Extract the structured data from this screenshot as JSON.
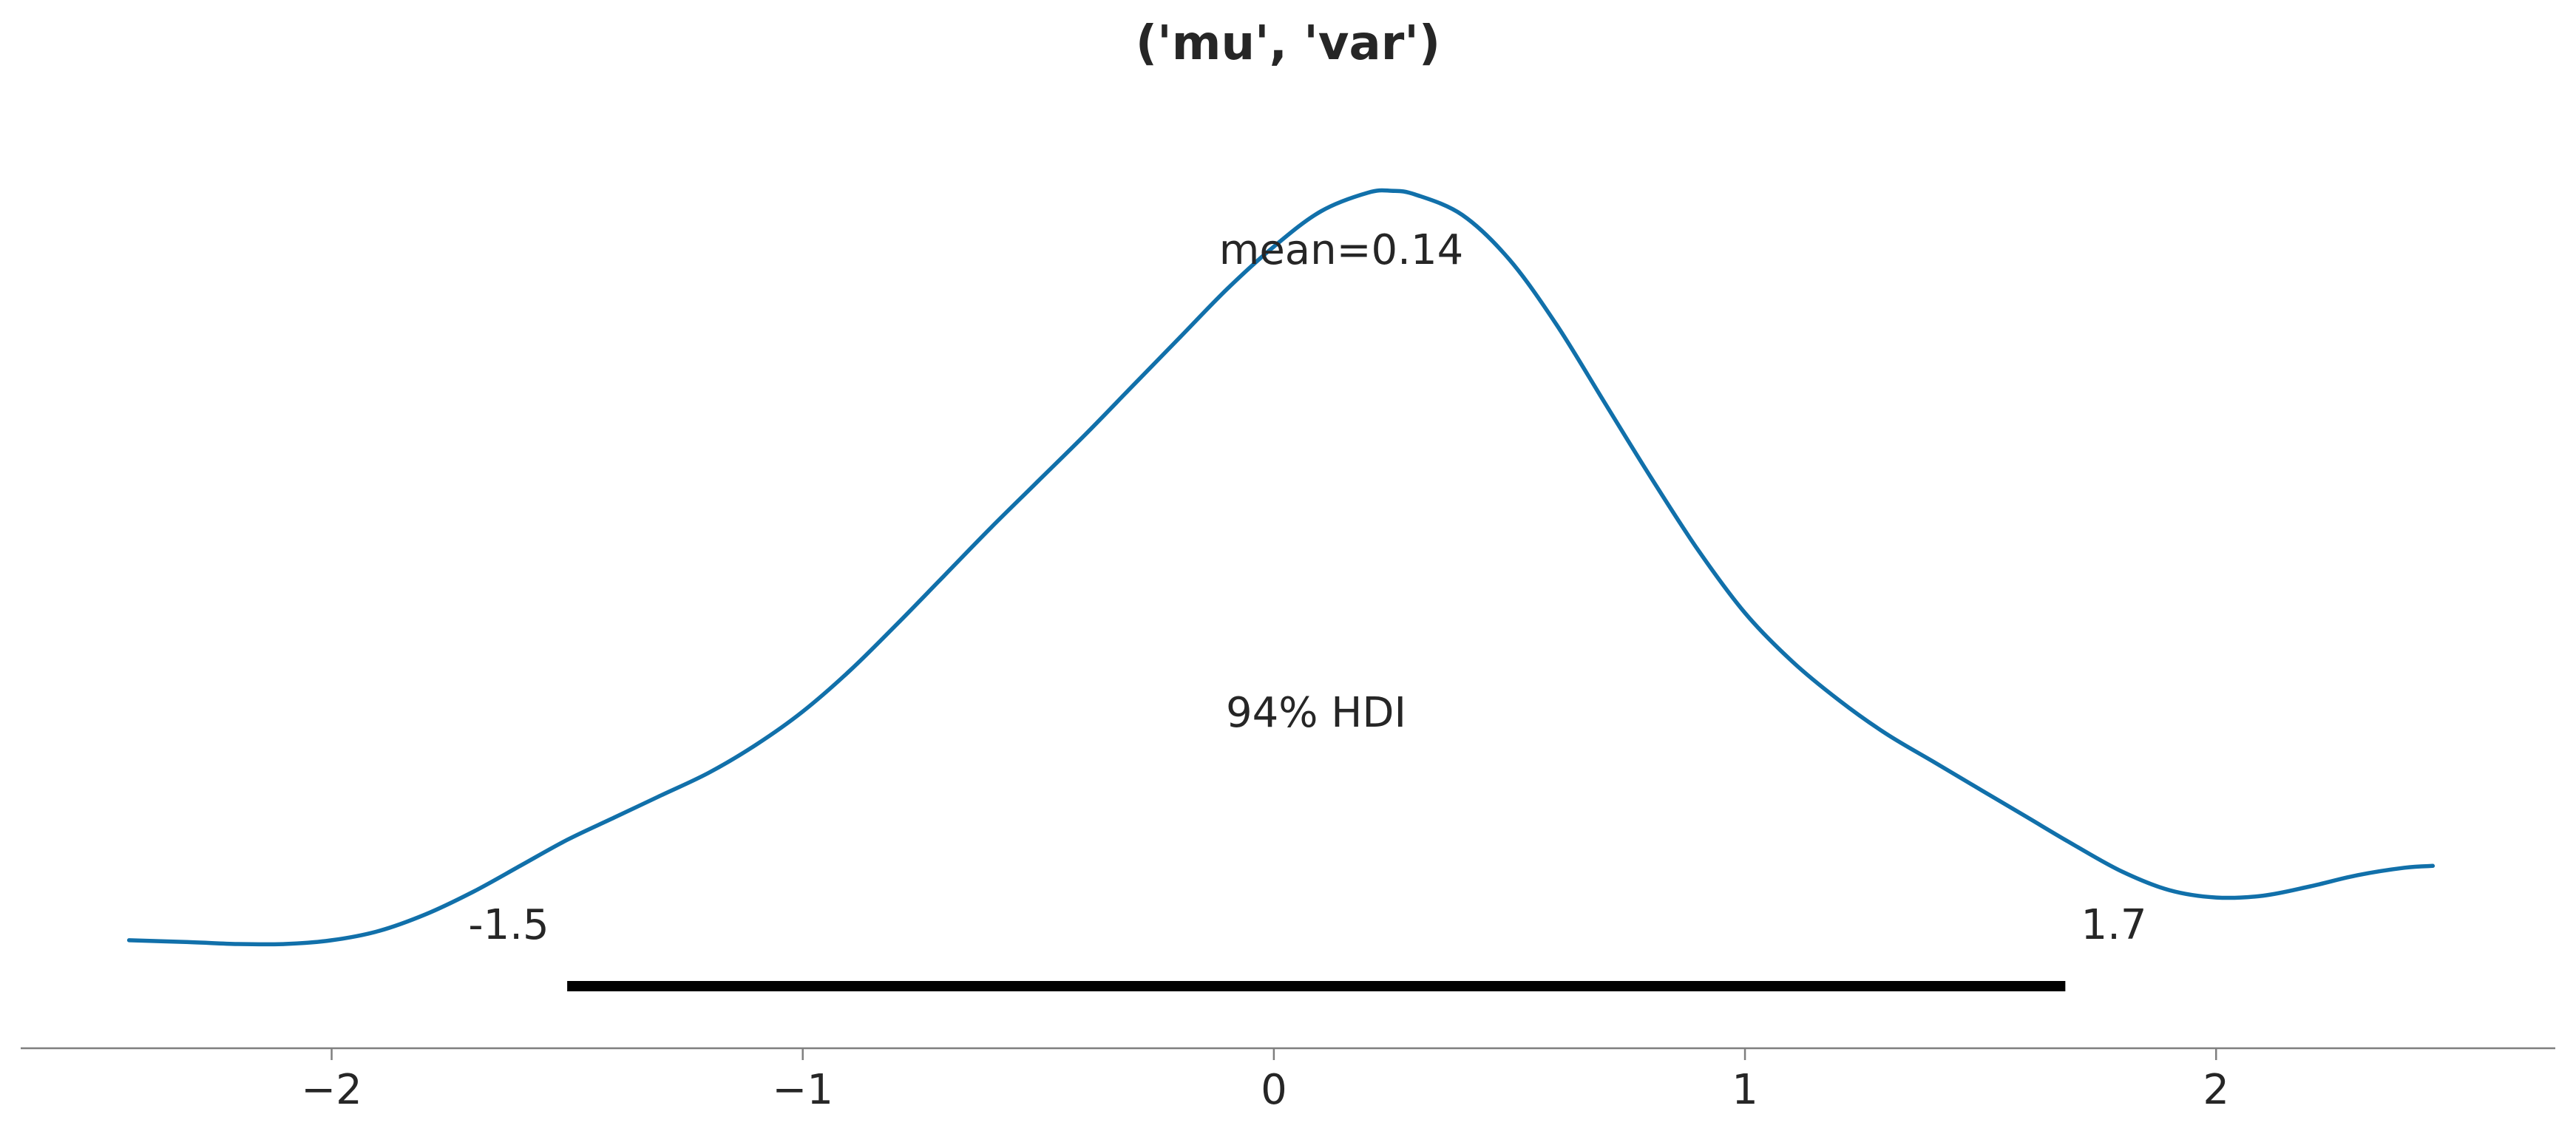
{
  "chart_data": {
    "type": "line",
    "title": "('mu', 'var')",
    "xlabel": "",
    "ylabel": "",
    "xlim": [
      -2.66,
      2.72
    ],
    "ylim": [
      -0.035,
      0.44
    ],
    "grid": false,
    "xticks": [
      -2,
      -1,
      0,
      1,
      2
    ],
    "xtick_labels": [
      "−2",
      "−1",
      "0",
      "1",
      "2"
    ],
    "series": [
      {
        "color": "#1170AA",
        "points": [
          [
            -2.43,
            0.0
          ],
          [
            -2.3,
            -0.001
          ],
          [
            -2.2,
            -0.002
          ],
          [
            -2.1,
            -0.002
          ],
          [
            -2.0,
            0.0
          ],
          [
            -1.9,
            0.005
          ],
          [
            -1.8,
            0.014
          ],
          [
            -1.7,
            0.026
          ],
          [
            -1.6,
            0.04
          ],
          [
            -1.5,
            0.054
          ],
          [
            -1.4,
            0.066
          ],
          [
            -1.3,
            0.078
          ],
          [
            -1.2,
            0.09
          ],
          [
            -1.1,
            0.105
          ],
          [
            -1.0,
            0.123
          ],
          [
            -0.9,
            0.145
          ],
          [
            -0.8,
            0.17
          ],
          [
            -0.7,
            0.196
          ],
          [
            -0.6,
            0.222
          ],
          [
            -0.5,
            0.247
          ],
          [
            -0.4,
            0.272
          ],
          [
            -0.3,
            0.298
          ],
          [
            -0.2,
            0.324
          ],
          [
            -0.1,
            0.35
          ],
          [
            0.0,
            0.373
          ],
          [
            0.1,
            0.392
          ],
          [
            0.2,
            0.402
          ],
          [
            0.25,
            0.403
          ],
          [
            0.3,
            0.401
          ],
          [
            0.4,
            0.39
          ],
          [
            0.5,
            0.366
          ],
          [
            0.6,
            0.331
          ],
          [
            0.7,
            0.29
          ],
          [
            0.8,
            0.249
          ],
          [
            0.9,
            0.21
          ],
          [
            1.0,
            0.176
          ],
          [
            1.1,
            0.15
          ],
          [
            1.2,
            0.129
          ],
          [
            1.3,
            0.111
          ],
          [
            1.4,
            0.096
          ],
          [
            1.5,
            0.081
          ],
          [
            1.6,
            0.066
          ],
          [
            1.7,
            0.051
          ],
          [
            1.8,
            0.037
          ],
          [
            1.9,
            0.027
          ],
          [
            2.0,
            0.023
          ],
          [
            2.1,
            0.024
          ],
          [
            2.2,
            0.029
          ],
          [
            2.3,
            0.035
          ],
          [
            2.4,
            0.039
          ],
          [
            2.46,
            0.04
          ]
        ]
      }
    ],
    "annotations": {
      "mean_label": "mean=0.14",
      "hdi_label": "94% HDI",
      "hdi_low_label": "-1.5",
      "hdi_high_label": "1.7"
    },
    "hdi": {
      "low": -1.5,
      "high": 1.68,
      "color": "#000000"
    }
  }
}
